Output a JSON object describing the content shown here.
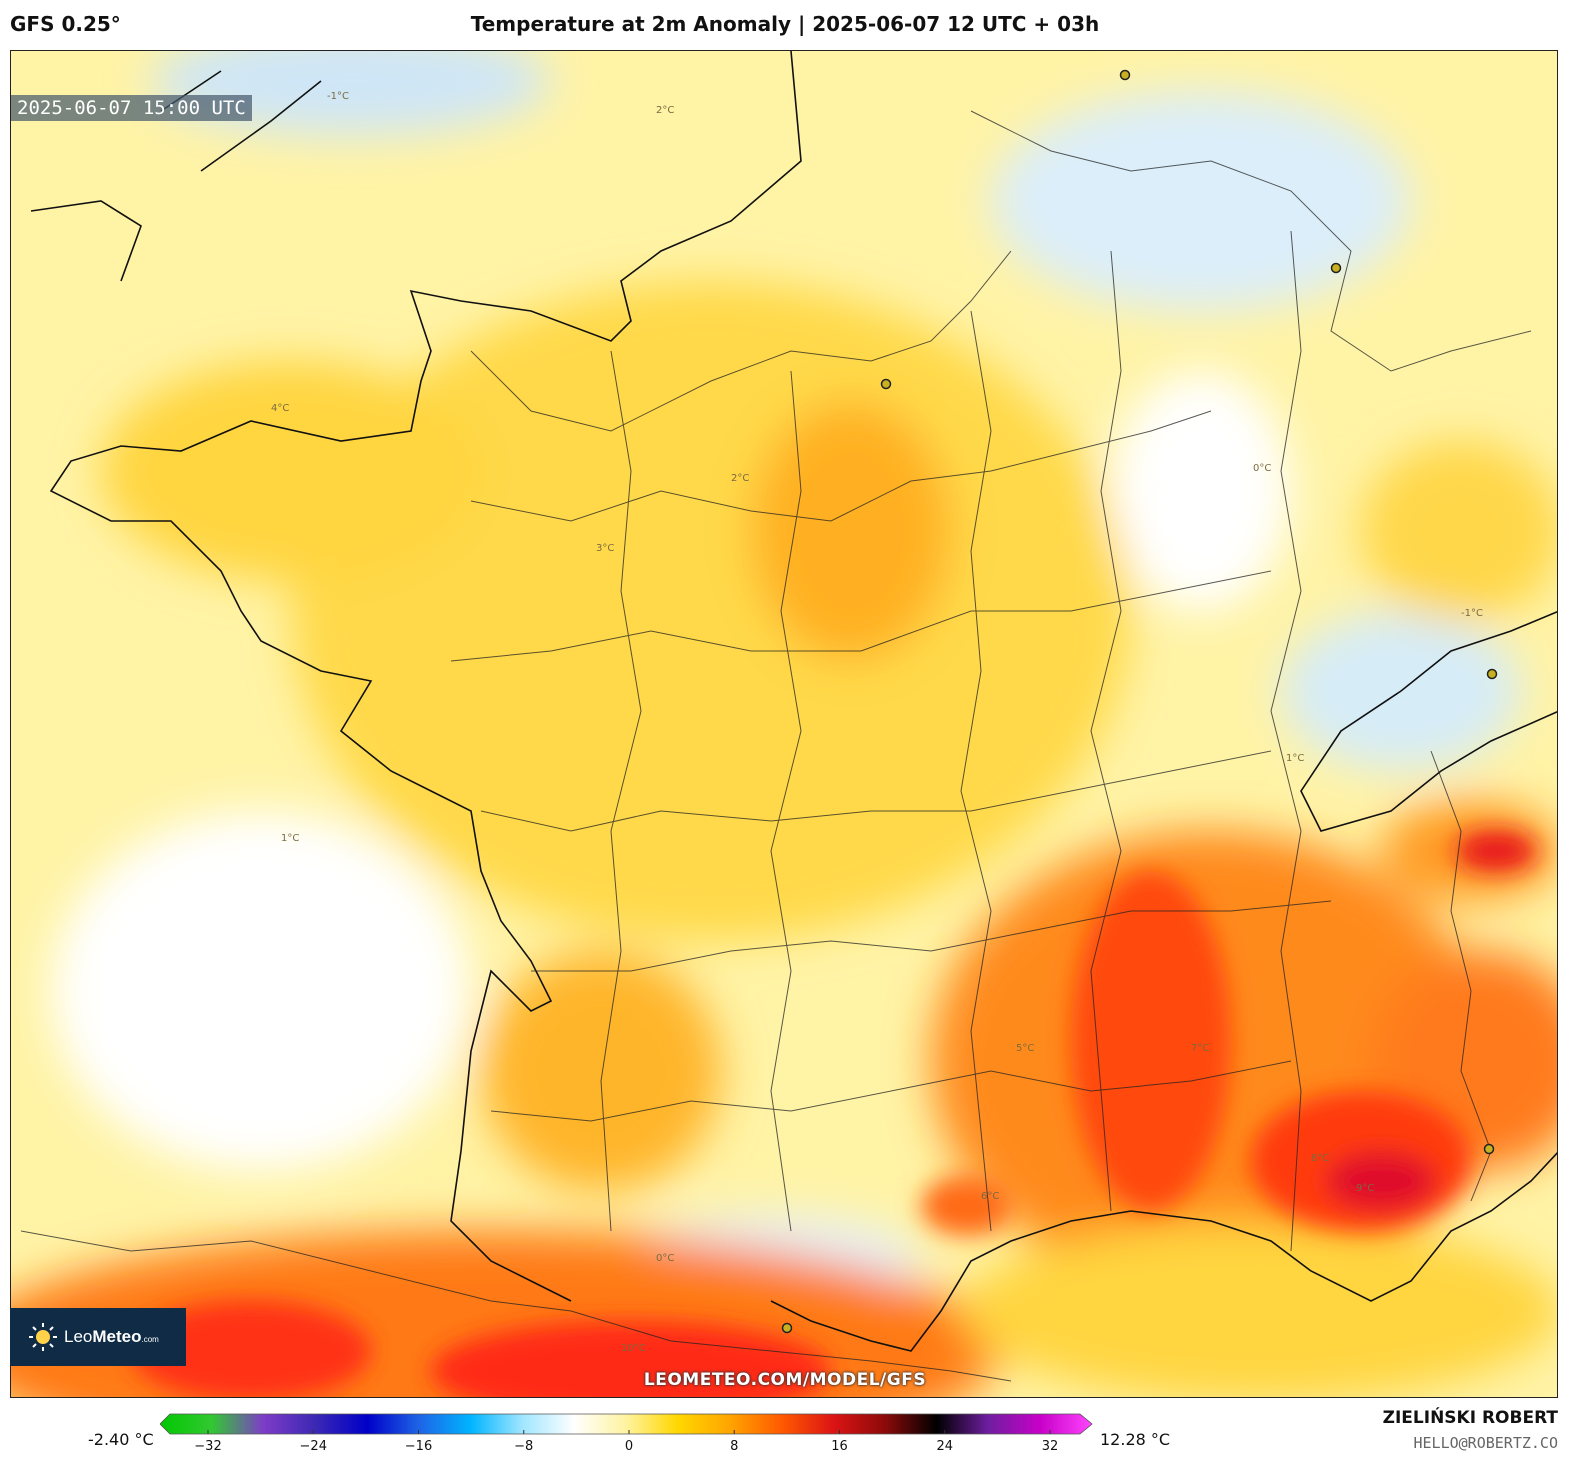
{
  "header": {
    "model": "GFS 0.25°",
    "title": "Temperature at 2m Anomaly | 2025-06-07 12 UTC + 03h"
  },
  "map": {
    "valid_time": "2025-06-07 15:00 UTC",
    "watermark_url": "LEOMETEO.COM/MODEL/GFS",
    "logo_text_regular": "Leo",
    "logo_text_bold": "Meteo",
    "logo_text_suffix": ".com",
    "contour_labels": [
      "2°C",
      "-1°C",
      "1°C",
      "0°C",
      "2°C",
      "3°C",
      "4°C",
      "5°C",
      "6°C",
      "7°C",
      "8°C",
      "9°C",
      "10°C",
      "1°C",
      "0°C",
      "-1°C"
    ]
  },
  "colorbar": {
    "min_label": "-2.40 °C",
    "max_label": "12.28 °C",
    "ticks": [
      "−32",
      "−24",
      "−16",
      "−8",
      "0",
      "8",
      "16",
      "24",
      "32"
    ],
    "stops": [
      "#00c800",
      "#32c832",
      "#7d3cc8",
      "#3c28b4",
      "#0000c8",
      "#1e64e6",
      "#00b4ff",
      "#a0e6ff",
      "#ffffff",
      "#fff3a0",
      "#ffd700",
      "#ffa500",
      "#ff5a00",
      "#dc1414",
      "#8c0a0a",
      "#000000",
      "#6e1ea0",
      "#c800c8",
      "#ff46ff"
    ]
  },
  "credits": {
    "author": "ZIELIŃSKI ROBERT",
    "email": "HELLO@ROBERTZ.CO"
  }
}
